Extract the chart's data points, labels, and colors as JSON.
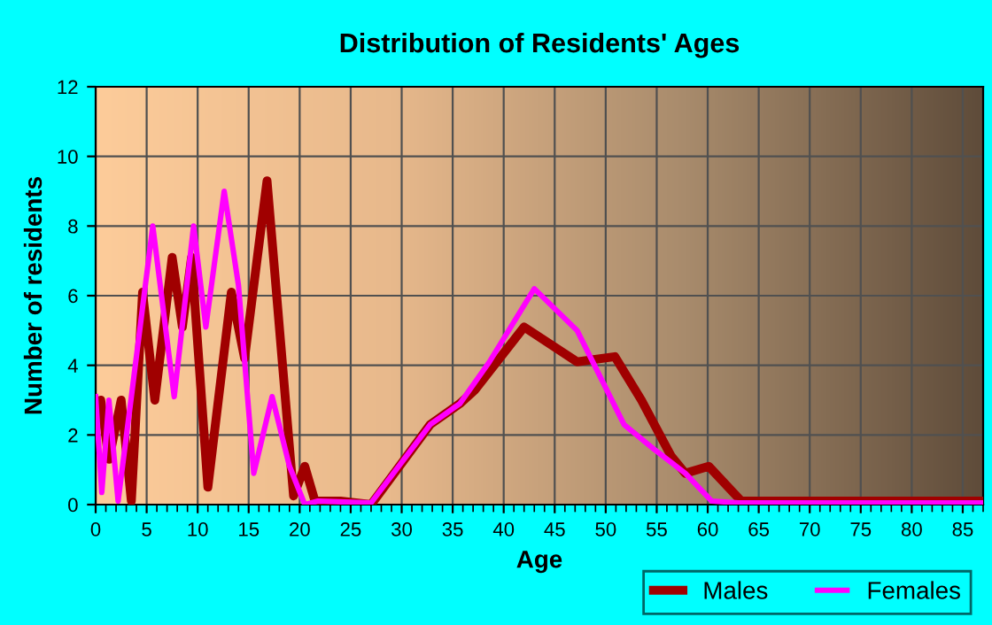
{
  "chart_data": {
    "type": "line",
    "title": "Distribution of Residents' Ages",
    "xlabel": "Age",
    "ylabel": "Number of residents",
    "xlim": [
      0,
      87
    ],
    "xticks": [
      0,
      5,
      10,
      15,
      20,
      25,
      30,
      35,
      40,
      45,
      50,
      55,
      60,
      65,
      70,
      75,
      80,
      85
    ],
    "ylim": [
      0,
      12
    ],
    "yticks": [
      0,
      2,
      4,
      6,
      8,
      10,
      12
    ],
    "grid": true,
    "legend": "bottom right",
    "marker": "none",
    "line_style": "solid",
    "series": [
      {
        "name": "Males",
        "color": "#a00000",
        "x": [
          0,
          0.5,
          1.3,
          2.5,
          3.5,
          4.6,
          5.8,
          7.5,
          8.5,
          9.4,
          11.0,
          13.3,
          14.6,
          16.8,
          19.4,
          20.5,
          21.5,
          24,
          27,
          32.8,
          35.7,
          37.2,
          42.0,
          47.2,
          50.9,
          53.5,
          56.4,
          57.8,
          60.1,
          63.3,
          87
        ],
        "values": [
          2.3,
          3.0,
          1.3,
          3.0,
          0.1,
          6.1,
          3.0,
          7.1,
          5.1,
          7.1,
          0.5,
          6.1,
          4.2,
          9.3,
          0.25,
          1.1,
          0.1,
          0.1,
          0,
          2.3,
          2.9,
          3.3,
          5.1,
          4.1,
          4.25,
          3.0,
          1.4,
          0.9,
          1.1,
          0.1,
          0.1
        ]
      },
      {
        "name": "Females",
        "color": "#ff00ff",
        "x": [
          0,
          0.6,
          1.3,
          2.2,
          3.5,
          5.6,
          7.7,
          9.6,
          10.8,
          12.6,
          14.0,
          15.5,
          17.3,
          19.0,
          20.5,
          21.8,
          27,
          32.8,
          35.7,
          38.6,
          43.0,
          47.2,
          51.8,
          54.7,
          57.8,
          60.4,
          63,
          87
        ],
        "values": [
          3.1,
          0.35,
          3.0,
          0.1,
          3.1,
          8.0,
          3.1,
          8.0,
          5.1,
          9.0,
          6.3,
          0.9,
          3.1,
          1.1,
          0,
          0.1,
          0.05,
          2.3,
          2.9,
          4.1,
          6.2,
          5.0,
          2.3,
          1.6,
          0.9,
          0.1,
          0.05,
          0.05
        ]
      }
    ]
  }
}
